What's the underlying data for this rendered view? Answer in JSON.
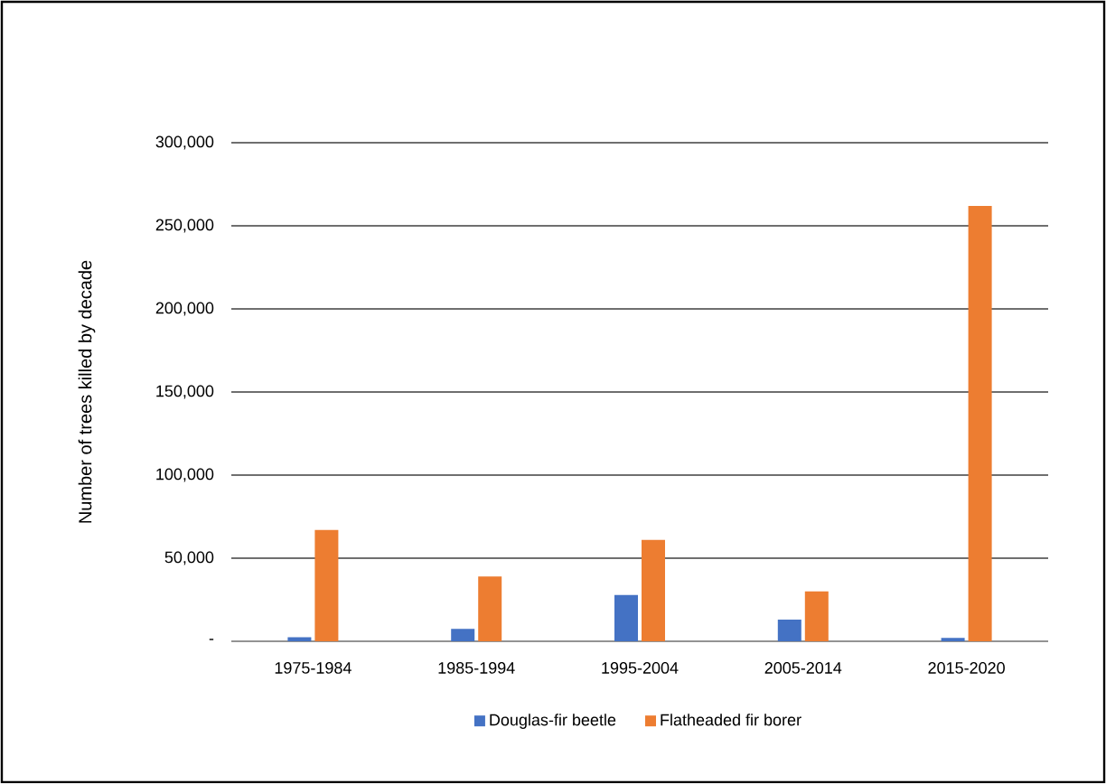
{
  "chart_data": {
    "type": "bar",
    "ylabel": "Number of trees killed by decade",
    "categories": [
      "1975-1984",
      "1985-1994",
      "1995-2004",
      "2005-2014",
      "2015-2020"
    ],
    "series": [
      {
        "name": "Douglas-fir beetle",
        "color": "#4472c4",
        "values": [
          2500,
          7500,
          28000,
          13000,
          2000
        ]
      },
      {
        "name": "Flatheaded fir borer",
        "color": "#ed7d31",
        "values": [
          67000,
          39000,
          61000,
          30000,
          262000
        ]
      }
    ],
    "ylim": [
      0,
      300000
    ],
    "yticks": [
      {
        "value": 0,
        "label": "-"
      },
      {
        "value": 50000,
        "label": "50,000"
      },
      {
        "value": 100000,
        "label": "100,000"
      },
      {
        "value": 150000,
        "label": "150,000"
      },
      {
        "value": 200000,
        "label": "200,000"
      },
      {
        "value": 250000,
        "label": "250,000"
      },
      {
        "value": 300000,
        "label": "300,000"
      }
    ],
    "grid": "y",
    "legend": "bottom"
  }
}
